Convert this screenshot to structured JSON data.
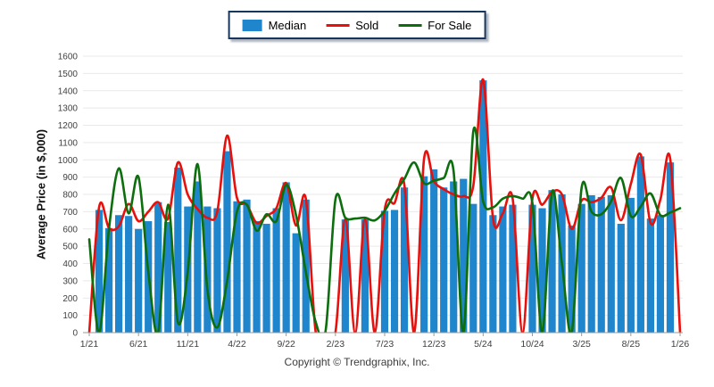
{
  "legend": {
    "items": [
      {
        "label": "Median",
        "type": "bar",
        "color": "#1f86cd"
      },
      {
        "label": "Sold",
        "type": "line",
        "color": "#e8100c"
      },
      {
        "label": "For Sale",
        "type": "line",
        "color": "#0c6e0c"
      }
    ]
  },
  "y_axis": {
    "title": "Average Price (in $,000)",
    "min": 0,
    "max": 1600,
    "step": 100,
    "tick_labels": [
      "0",
      "100",
      "200",
      "300",
      "400",
      "500",
      "600",
      "700",
      "800",
      "900",
      "1000",
      "1100",
      "1200",
      "1300",
      "1400",
      "1500",
      "1600"
    ]
  },
  "x_axis": {
    "tick_labels": [
      "1/21",
      "6/21",
      "11/21",
      "4/22",
      "9/22",
      "2/23",
      "7/23",
      "12/23",
      "5/24",
      "10/24",
      "3/25",
      "8/25",
      "1/26"
    ],
    "tick_indices": [
      0,
      5,
      10,
      15,
      20,
      25,
      30,
      35,
      40,
      45,
      50,
      55,
      60
    ]
  },
  "footer": {
    "copyright": "Copyright © Trendgraphix, Inc."
  },
  "colors": {
    "grid": "#e9e9e9",
    "axis": "#9a9a9a",
    "tick_text": "#3f3f3f"
  },
  "chart_data": {
    "type": "combo",
    "title": "",
    "xlabel": "",
    "ylabel": "Average Price (in $,000)",
    "ylim": [
      0,
      1600
    ],
    "grid": "horizontal",
    "legend_position": "top",
    "x": [
      "1/21",
      "2/21",
      "3/21",
      "4/21",
      "5/21",
      "6/21",
      "7/21",
      "8/21",
      "9/21",
      "10/21",
      "11/21",
      "12/21",
      "1/22",
      "2/22",
      "3/22",
      "4/22",
      "5/22",
      "6/22",
      "7/22",
      "8/22",
      "9/22",
      "10/22",
      "11/22",
      "12/22",
      "1/23",
      "2/23",
      "3/23",
      "4/23",
      "5/23",
      "6/23",
      "7/23",
      "8/23",
      "9/23",
      "10/23",
      "11/23",
      "12/23",
      "1/24",
      "2/24",
      "3/24",
      "4/24",
      "5/24",
      "6/24",
      "7/24",
      "8/24",
      "9/24",
      "10/24",
      "11/24",
      "12/24",
      "1/25",
      "2/25",
      "3/25",
      "4/25",
      "5/25",
      "6/25",
      "7/25",
      "8/25",
      "9/25",
      "10/25",
      "11/25",
      "12/25",
      "1/26"
    ],
    "series": [
      {
        "name": "Median",
        "type": "bar",
        "color": "#1f86cd",
        "values": [
          null,
          710,
          605,
          680,
          675,
          600,
          645,
          755,
          640,
          955,
          730,
          875,
          730,
          720,
          1050,
          760,
          770,
          645,
          630,
          720,
          870,
          575,
          770,
          null,
          null,
          null,
          655,
          null,
          655,
          null,
          705,
          710,
          840,
          null,
          905,
          945,
          840,
          875,
          890,
          745,
          1460,
          680,
          730,
          740,
          null,
          740,
          720,
          825,
          800,
          620,
          745,
          795,
          785,
          795,
          630,
          780,
          1020,
          660,
          680,
          985,
          null
        ]
      },
      {
        "name": "Sold",
        "type": "line",
        "color": "#e8100c",
        "values": [
          0,
          725,
          605,
          615,
          745,
          645,
          700,
          755,
          660,
          985,
          800,
          715,
          665,
          700,
          1140,
          780,
          740,
          635,
          675,
          720,
          865,
          620,
          775,
          0,
          0,
          0,
          655,
          0,
          655,
          0,
          710,
          750,
          855,
          0,
          1005,
          875,
          830,
          800,
          790,
          850,
          1465,
          660,
          690,
          775,
          0,
          775,
          740,
          815,
          800,
          600,
          765,
          755,
          780,
          840,
          650,
          860,
          1030,
          635,
          770,
          1005,
          0
        ]
      },
      {
        "name": "For Sale",
        "type": "line",
        "color": "#0c6e0c",
        "values": [
          540,
          0,
          600,
          950,
          690,
          900,
          350,
          0,
          740,
          60,
          350,
          975,
          250,
          30,
          300,
          700,
          740,
          590,
          685,
          645,
          855,
          680,
          350,
          60,
          10,
          770,
          665,
          660,
          665,
          650,
          705,
          805,
          890,
          985,
          865,
          880,
          895,
          935,
          0,
          1165,
          760,
          725,
          775,
          790,
          775,
          750,
          0,
          815,
          400,
          0,
          840,
          700,
          685,
          760,
          895,
          675,
          730,
          805,
          680,
          695,
          720
        ]
      }
    ]
  }
}
